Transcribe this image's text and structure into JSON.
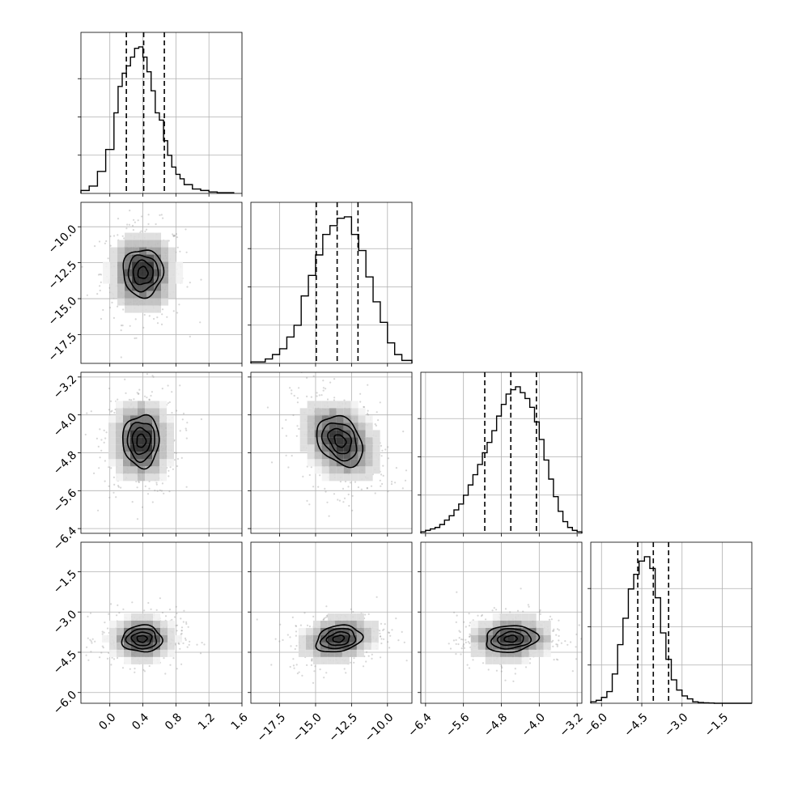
{
  "chart_data": {
    "type": "corner",
    "title": "",
    "grid": true,
    "parameters": [
      {
        "index": 0,
        "range": [
          -0.35,
          1.6
        ],
        "ticks": [
          0.0,
          0.4,
          0.8,
          1.2,
          1.6
        ],
        "tick_labels": [
          "0.0",
          "0.4",
          "0.8",
          "1.2",
          "1.6"
        ],
        "hist_x_edges": [
          -0.35,
          -0.25,
          -0.15,
          -0.05,
          0.05,
          0.1,
          0.15,
          0.2,
          0.25,
          0.3,
          0.35,
          0.4,
          0.45,
          0.5,
          0.55,
          0.6,
          0.65,
          0.7,
          0.75,
          0.8,
          0.85,
          0.9,
          1.0,
          1.1,
          1.2,
          1.3,
          1.5
        ],
        "hist_heights": [
          0.02,
          0.05,
          0.15,
          0.3,
          0.55,
          0.73,
          0.82,
          0.87,
          0.93,
          0.99,
          1.0,
          0.93,
          0.83,
          0.7,
          0.55,
          0.5,
          0.36,
          0.26,
          0.18,
          0.13,
          0.1,
          0.06,
          0.03,
          0.02,
          0.01,
          0.005
        ],
        "quantiles": [
          0.2,
          0.41,
          0.66
        ]
      },
      {
        "index": 1,
        "range": [
          -19.5,
          -8.3
        ],
        "ticks": [
          -17.5,
          -15.0,
          -12.5,
          -10.0
        ],
        "tick_labels": [
          "−17.5",
          "−15.0",
          "−12.5",
          "−10.0"
        ],
        "hist_x_edges": [
          -19.5,
          -18.5,
          -18.0,
          -17.5,
          -17.0,
          -16.5,
          -16.0,
          -15.5,
          -15.0,
          -14.5,
          -14.0,
          -13.5,
          -13.0,
          -12.5,
          -12.0,
          -11.5,
          -11.0,
          -10.5,
          -10.0,
          -9.5,
          -9.0,
          -8.3
        ],
        "hist_heights": [
          0.01,
          0.03,
          0.06,
          0.1,
          0.18,
          0.26,
          0.46,
          0.6,
          0.74,
          0.88,
          0.94,
          0.99,
          1.0,
          0.88,
          0.77,
          0.59,
          0.42,
          0.28,
          0.14,
          0.06,
          0.02
        ],
        "quantiles": [
          -14.95,
          -13.5,
          -12.05
        ]
      },
      {
        "index": 2,
        "range": [
          -6.5,
          -3.1
        ],
        "ticks": [
          -6.4,
          -5.6,
          -4.8,
          -4.0,
          -3.2
        ],
        "tick_labels": [
          "−6.4",
          "−5.6",
          "−4.8",
          "−4.0",
          "−3.2"
        ],
        "hist_x_edges": [
          -6.5,
          -6.4,
          -6.3,
          -6.2,
          -6.1,
          -6.0,
          -5.9,
          -5.8,
          -5.7,
          -5.6,
          -5.5,
          -5.4,
          -5.3,
          -5.2,
          -5.1,
          -5.0,
          -4.9,
          -4.8,
          -4.7,
          -4.6,
          -4.5,
          -4.4,
          -4.3,
          -4.2,
          -4.1,
          -4.0,
          -3.9,
          -3.8,
          -3.7,
          -3.6,
          -3.5,
          -3.4,
          -3.3,
          -3.2,
          -3.1
        ],
        "hist_heights": [
          0.01,
          0.02,
          0.03,
          0.04,
          0.06,
          0.09,
          0.12,
          0.16,
          0.2,
          0.26,
          0.33,
          0.4,
          0.47,
          0.55,
          0.62,
          0.7,
          0.8,
          0.88,
          0.95,
          0.98,
          1.0,
          0.96,
          0.92,
          0.86,
          0.76,
          0.64,
          0.5,
          0.37,
          0.25,
          0.15,
          0.08,
          0.04,
          0.02,
          0.01
        ],
        "quantiles": [
          -5.15,
          -4.6,
          -4.06
        ]
      },
      {
        "index": 3,
        "range": [
          -6.4,
          -0.4
        ],
        "ticks": [
          -6.0,
          -4.5,
          -3.0,
          -1.5
        ],
        "tick_labels": [
          "−6.0",
          "−4.5",
          "−3.0",
          "−1.5"
        ],
        "hist_x_edges": [
          -6.4,
          -6.2,
          -6.0,
          -5.8,
          -5.6,
          -5.4,
          -5.2,
          -5.0,
          -4.8,
          -4.6,
          -4.4,
          -4.2,
          -4.0,
          -3.8,
          -3.6,
          -3.4,
          -3.2,
          -3.0,
          -2.8,
          -2.6,
          -2.4,
          -2.2,
          -2.0,
          -1.8,
          -0.4
        ],
        "hist_heights": [
          0.01,
          0.02,
          0.04,
          0.08,
          0.2,
          0.4,
          0.58,
          0.78,
          0.88,
          0.97,
          1.0,
          0.92,
          0.72,
          0.48,
          0.3,
          0.16,
          0.09,
          0.05,
          0.03,
          0.01,
          0.005,
          0.003,
          0.002,
          0.0
        ],
        "quantiles": [
          -4.65,
          -4.07,
          -3.5
        ]
      }
    ],
    "pairs": [
      {
        "x_param": 0,
        "y_param": 1,
        "center": [
          0.4,
          -13.2
        ],
        "sigma": [
          0.22,
          1.5
        ],
        "rho": 0.0
      },
      {
        "x_param": 0,
        "y_param": 2,
        "center": [
          0.38,
          -4.55
        ],
        "sigma": [
          0.2,
          0.5
        ],
        "rho": 0.0
      },
      {
        "x_param": 1,
        "y_param": 2,
        "center": [
          -13.3,
          -4.55
        ],
        "sigma": [
          1.45,
          0.48
        ],
        "rho": -0.3
      },
      {
        "x_param": 0,
        "y_param": 3,
        "center": [
          0.39,
          -4.0
        ],
        "sigma": [
          0.22,
          0.45
        ],
        "rho": 0.0
      },
      {
        "x_param": 1,
        "y_param": 3,
        "center": [
          -13.4,
          -4.0
        ],
        "sigma": [
          1.45,
          0.45
        ],
        "rho": 0.2
      },
      {
        "x_param": 2,
        "y_param": 3,
        "center": [
          -4.6,
          -4.0
        ],
        "sigma": [
          0.5,
          0.45
        ],
        "rho": 0.1
      }
    ],
    "contour_levels_sigma": [
      0.5,
      1.0,
      1.5,
      2.0
    ]
  }
}
